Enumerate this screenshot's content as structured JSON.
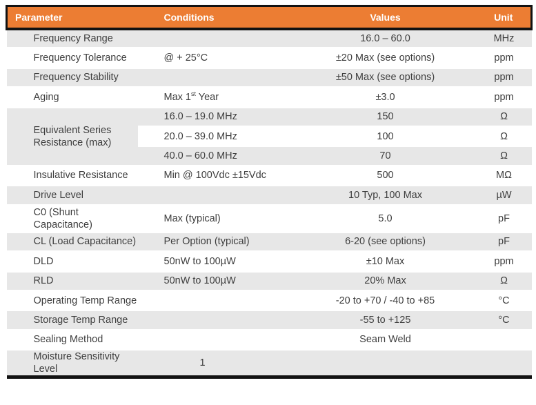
{
  "table": {
    "colors": {
      "header_bg": "#EC7D33",
      "header_text": "#FFFFFF",
      "row_alt_bg": "#E7E7E7",
      "border": "#121212",
      "text": "#3E3E3E"
    },
    "columns": [
      {
        "key": "param",
        "label": "Parameter"
      },
      {
        "key": "cond",
        "label": "Conditions"
      },
      {
        "key": "value",
        "label": "Values"
      },
      {
        "key": "unit",
        "label": "Unit"
      }
    ],
    "rows": [
      {
        "param": "Frequency Range",
        "cond": "",
        "value": "16.0 – 60.0",
        "unit": "MHz",
        "shade": "gray"
      },
      {
        "param": "Frequency Tolerance",
        "cond": "@ + 25°C",
        "value": "±20 Max (see options)",
        "unit": "ppm",
        "shade": "white"
      },
      {
        "param": "Frequency Stability",
        "cond": "",
        "value": "±50 Max (see options)",
        "unit": "ppm",
        "shade": "gray"
      },
      {
        "param": "Aging",
        "cond": "Max 1^{st} Year",
        "value": "±3.0",
        "unit": "ppm",
        "shade": "white"
      },
      {
        "param": "Equivalent Series Resistance (max)",
        "param_rowspan": 3,
        "param_shade": "gray",
        "cond": "16.0 – 19.0 MHz",
        "value": "150",
        "unit": "Ω",
        "shade": "gray"
      },
      {
        "param": null,
        "cond": "20.0 – 39.0 MHz",
        "value": "100",
        "unit": "Ω",
        "shade": "white"
      },
      {
        "param": null,
        "cond": "40.0 – 60.0 MHz",
        "value": "70",
        "unit": "Ω",
        "shade": "gray"
      },
      {
        "param": "Insulative Resistance",
        "cond": "Min @ 100Vdc ±15Vdc",
        "value": "500",
        "unit": "MΩ",
        "shade": "white"
      },
      {
        "param": "Drive Level",
        "cond": "",
        "value": "10 Typ, 100 Max",
        "unit": "µW",
        "shade": "gray"
      },
      {
        "param": "C0 (Shunt Capacitance)",
        "cond": "Max (typical)",
        "value": "5.0",
        "unit": "pF",
        "shade": "white"
      },
      {
        "param": "CL (Load Capacitance)",
        "cond": "Per Option (typical)",
        "value": "6-20 (see options)",
        "unit": "pF",
        "shade": "gray"
      },
      {
        "param": "DLD",
        "cond": "50nW to 100µW",
        "value": "±10 Max",
        "unit": "ppm",
        "shade": "white"
      },
      {
        "param": "RLD",
        "cond": "50nW to 100µW",
        "value": "20% Max",
        "unit": "Ω",
        "shade": "gray"
      },
      {
        "param": "Operating Temp Range",
        "cond": "",
        "value": "-20 to +70 / -40 to +85",
        "unit": "°C",
        "shade": "white"
      },
      {
        "param": "Storage Temp Range",
        "cond": "",
        "value": "-55 to +125",
        "unit": "°C",
        "shade": "gray"
      },
      {
        "param": "Sealing Method",
        "cond": "",
        "value": "Seam Weld",
        "unit": "",
        "shade": "white"
      },
      {
        "param": "Moisture Sensitivity Level",
        "cond": "1",
        "cond_indent": true,
        "value": "",
        "unit": "",
        "shade": "gray"
      }
    ]
  }
}
